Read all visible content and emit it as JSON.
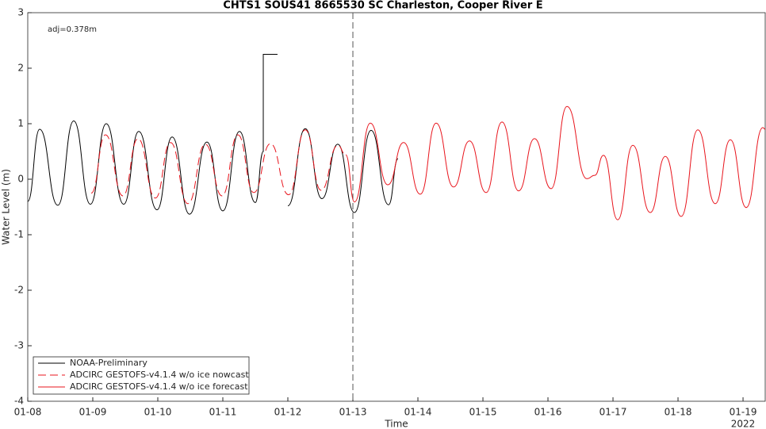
{
  "chart_data": {
    "type": "line",
    "title": "CHTS1 SOUS41 8665530 SC Charleston, Cooper River E",
    "xlabel": "Time",
    "ylabel": "Water Level (m)",
    "annotation": "adj=0.378m",
    "year_label": "2022",
    "vline_x": 5,
    "xlim": [
      0,
      11.341
    ],
    "ylim": [
      -4,
      3
    ],
    "yticks": [
      -4,
      -3,
      -2,
      -1,
      0,
      1,
      2,
      3
    ],
    "xticks": [
      {
        "value": 0,
        "label": "01-08"
      },
      {
        "value": 1,
        "label": "01-09"
      },
      {
        "value": 2,
        "label": "01-10"
      },
      {
        "value": 3,
        "label": "01-11"
      },
      {
        "value": 4,
        "label": "01-12"
      },
      {
        "value": 5,
        "label": "01-13"
      },
      {
        "value": 6,
        "label": "01-14"
      },
      {
        "value": 7,
        "label": "01-15"
      },
      {
        "value": 8,
        "label": "01-16"
      },
      {
        "value": 9,
        "label": "01-17"
      },
      {
        "value": 10,
        "label": "01-18"
      },
      {
        "value": 11,
        "label": "01-19"
      }
    ],
    "grid": false,
    "legend": "lower left",
    "series": [
      {
        "name": "NOAA-Preliminary",
        "color": "#000000",
        "style": "solid",
        "x": [
          0,
          0.183,
          0.463,
          0.707,
          0.963,
          1.207,
          1.476,
          1.707,
          1.988,
          2.22,
          2.488,
          2.756,
          3.0,
          3.256,
          3.5,
          3.622,
          3.622,
          3.841,
          3.92,
          4.0,
          4.268,
          4.524,
          4.768,
          5.024,
          5.28,
          5.549,
          5.695
        ],
        "values": [
          -0.4,
          0.9,
          -0.47,
          1.05,
          -0.45,
          1.0,
          -0.45,
          0.86,
          -0.55,
          0.76,
          -0.63,
          0.67,
          -0.57,
          0.86,
          -0.42,
          0.5,
          2.25,
          2.25,
          null,
          -0.48,
          0.91,
          -0.35,
          0.63,
          -0.6,
          0.88,
          -0.46,
          0.37
        ]
      },
      {
        "name": "ADCIRC GESTOFS-v4.1.4 w/o ice nowcast",
        "color": "#e8141c",
        "style": "dashed",
        "x": [
          0.976,
          1.195,
          1.463,
          1.695,
          1.963,
          2.195,
          2.463,
          2.732,
          2.988,
          3.232,
          3.476,
          3.732,
          4.012,
          4.268,
          4.512,
          4.768,
          4.89
        ],
        "values": [
          -0.25,
          0.8,
          -0.3,
          0.73,
          -0.34,
          0.66,
          -0.44,
          0.63,
          -0.3,
          0.8,
          -0.24,
          0.64,
          -0.28,
          0.89,
          -0.2,
          0.61,
          0.44
        ]
      },
      {
        "name": "ADCIRC GESTOFS-v4.1.4 w/o ice forecast",
        "color": "#e8141c",
        "style": "solid",
        "x": [
          4.89,
          5.024,
          5.268,
          5.537,
          5.78,
          6.037,
          6.28,
          6.549,
          6.793,
          7.049,
          7.293,
          7.549,
          7.793,
          8.049,
          8.293,
          8.598,
          8.72,
          8.854,
          9.073,
          9.305,
          9.573,
          9.805,
          10.049,
          10.305,
          10.573,
          10.805,
          11.049,
          11.305,
          11.341
        ],
        "values": [
          0.44,
          -0.41,
          1.01,
          -0.1,
          0.66,
          -0.27,
          1.01,
          -0.14,
          0.69,
          -0.24,
          1.03,
          -0.21,
          0.73,
          -0.17,
          1.31,
          0.01,
          0.07,
          0.43,
          -0.73,
          0.61,
          -0.6,
          0.41,
          -0.67,
          0.89,
          -0.44,
          0.71,
          -0.51,
          0.93,
          0.9
        ]
      }
    ]
  }
}
